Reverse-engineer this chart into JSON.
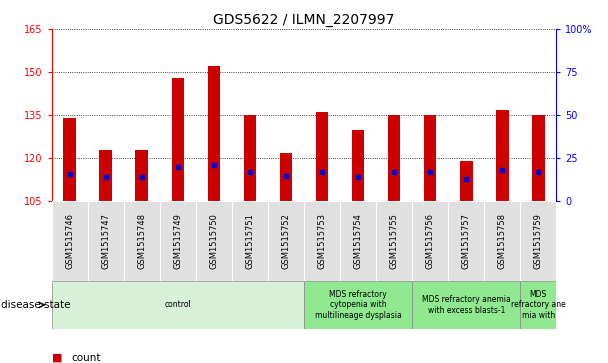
{
  "title": "GDS5622 / ILMN_2207997",
  "samples": [
    "GSM1515746",
    "GSM1515747",
    "GSM1515748",
    "GSM1515749",
    "GSM1515750",
    "GSM1515751",
    "GSM1515752",
    "GSM1515753",
    "GSM1515754",
    "GSM1515755",
    "GSM1515756",
    "GSM1515757",
    "GSM1515758",
    "GSM1515759"
  ],
  "counts": [
    134,
    123,
    123,
    148,
    152,
    135,
    122,
    136,
    130,
    135,
    135,
    119,
    137,
    135
  ],
  "percentile_ranks": [
    16,
    14,
    14,
    20,
    21,
    17,
    15,
    17,
    14,
    17,
    17,
    13,
    18,
    17
  ],
  "ylim_left": [
    105,
    165
  ],
  "ylim_right": [
    0,
    100
  ],
  "yticks_left": [
    105,
    120,
    135,
    150,
    165
  ],
  "yticks_right": [
    0,
    25,
    50,
    75,
    100
  ],
  "disease_groups": [
    {
      "label": "control",
      "start": 0,
      "end": 7,
      "color": "#d8f0d8"
    },
    {
      "label": "MDS refractory\ncytopenia with\nmultilineage dysplasia",
      "start": 7,
      "end": 10,
      "color": "#90e890"
    },
    {
      "label": "MDS refractory anemia\nwith excess blasts-1",
      "start": 10,
      "end": 13,
      "color": "#90e890"
    },
    {
      "label": "MDS\nrefractory ane\nmia with",
      "start": 13,
      "end": 14,
      "color": "#90e890"
    }
  ],
  "bar_color": "#cc0000",
  "blue_marker_color": "#0000cc",
  "bar_bottom": 105,
  "bar_width": 0.35,
  "grid_color": "#000000",
  "bg_color": "#ffffff",
  "plot_bg_color": "#ffffff",
  "sample_box_color": "#e0e0e0",
  "legend_count_color": "#cc0000",
  "legend_pct_color": "#0000cc",
  "title_fontsize": 10,
  "tick_fontsize": 7,
  "sample_fontsize": 6
}
